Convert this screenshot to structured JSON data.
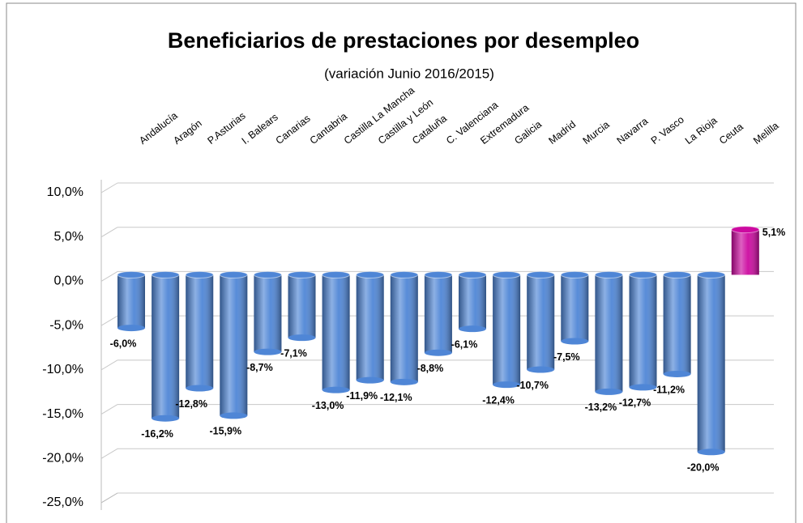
{
  "chart_data": {
    "type": "bar",
    "title": "Beneficiarios de prestaciones por desempleo",
    "subtitle": "(variación Junio 2016/2015)",
    "categories": [
      "Andalucía",
      "Aragón",
      "P.Asturias",
      "I. Balears",
      "Canarias",
      "Cantabria",
      "Castilla La Mancha",
      "Castilla y León",
      "Cataluña",
      "C. Valenciana",
      "Extremadura",
      "Galicia",
      "Madrid",
      "Murcia",
      "Navarra",
      "P. Vasco",
      "La Rioja",
      "Ceuta",
      "Melilla"
    ],
    "values": [
      -6.0,
      -16.2,
      -12.8,
      -15.9,
      -8.7,
      -7.1,
      -13.0,
      -11.9,
      -12.1,
      -8.8,
      -6.1,
      -12.4,
      -10.7,
      -7.5,
      -13.2,
      -12.7,
      -11.2,
      -20.0,
      5.1
    ],
    "value_labels": [
      "-6,0%",
      "-16,2%",
      "-12,8%",
      "-15,9%",
      "-8,7%",
      "-7,1%",
      "-13,0%",
      "-11,9%",
      "-12,1%",
      "-8,8%",
      "-6,1%",
      "-12,4%",
      "-10,7%",
      "-7,5%",
      "-13,2%",
      "-12,7%",
      "-11,2%",
      "-20,0%",
      "5,1%"
    ],
    "colors": [
      "#4f86d6",
      "#4f86d6",
      "#4f86d6",
      "#4f86d6",
      "#4f86d6",
      "#4f86d6",
      "#4f86d6",
      "#4f86d6",
      "#4f86d6",
      "#4f86d6",
      "#4f86d6",
      "#4f86d6",
      "#4f86d6",
      "#4f86d6",
      "#4f86d6",
      "#4f86d6",
      "#4f86d6",
      "#4f86d6",
      "#cc0aa0"
    ],
    "ylim": [
      -25,
      10
    ],
    "yticks": [
      {
        "value": -25,
        "label": "-25,0%"
      },
      {
        "value": -20,
        "label": "-20,0%"
      },
      {
        "value": -15,
        "label": "-15,0%"
      },
      {
        "value": -10,
        "label": "-10,0%"
      },
      {
        "value": -5,
        "label": "-5,0%"
      },
      {
        "value": 0,
        "label": "0,0%"
      },
      {
        "value": 5,
        "label": "5,0%"
      },
      {
        "value": 10,
        "label": "10,0%"
      }
    ],
    "grid": true
  }
}
